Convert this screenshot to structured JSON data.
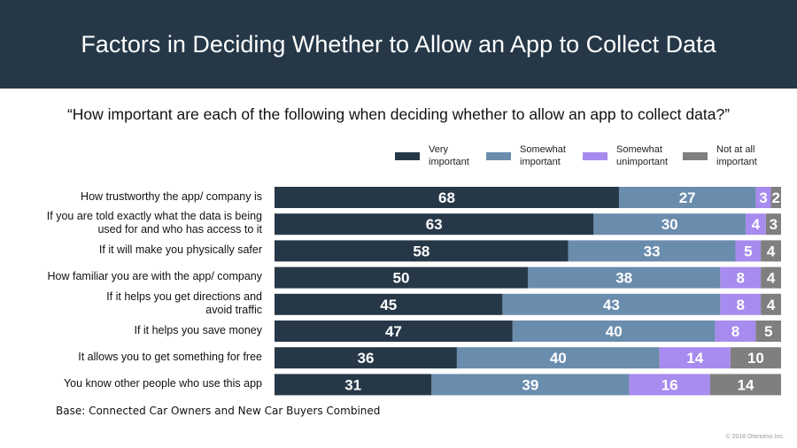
{
  "title": "Factors in Deciding Whether to Allow an App to Collect Data",
  "subtitle": "“How important are each of the following when deciding whether to allow an app to collect data?”",
  "footnote": "Base: Connected Car Owners and New Car Buyers Combined",
  "copyright": "© 2018 Otonomo Inc.",
  "colors": {
    "header_bg": "#263848",
    "very_important": "#263848",
    "somewhat_important": "#6A8CAD",
    "somewhat_unimportant": "#A78BEE",
    "not_at_all_important": "#7F7F7F"
  },
  "chart_data": {
    "type": "bar",
    "orientation": "horizontal",
    "stacked": true,
    "title": "Factors in Deciding Whether to Allow an App to Collect Data",
    "legend_position": "top-right",
    "categories": [
      "How trustworthy the app/ company is",
      "If you are told exactly what the data is being\nused for and who has access to it",
      "If it will make you physically safer",
      "How familiar you are with the app/ company",
      "If it helps you get directions and\navoid traffic",
      "If it helps you save money",
      "It allows you to get something for free",
      "You know other people who use this app"
    ],
    "series": [
      {
        "name": "Very\nimportant",
        "color": "#263848",
        "values": [
          68,
          63,
          58,
          50,
          45,
          47,
          36,
          31
        ]
      },
      {
        "name": "Somewhat\nimportant",
        "color": "#6A8CAD",
        "values": [
          27,
          30,
          33,
          38,
          43,
          40,
          40,
          39
        ]
      },
      {
        "name": "Somewhat\nunimportant",
        "color": "#A78BEE",
        "values": [
          3,
          4,
          5,
          8,
          8,
          8,
          14,
          16
        ]
      },
      {
        "name": "Not at all\nimportant",
        "color": "#7F7F7F",
        "values": [
          2,
          3,
          4,
          4,
          4,
          5,
          10,
          14
        ]
      }
    ]
  }
}
